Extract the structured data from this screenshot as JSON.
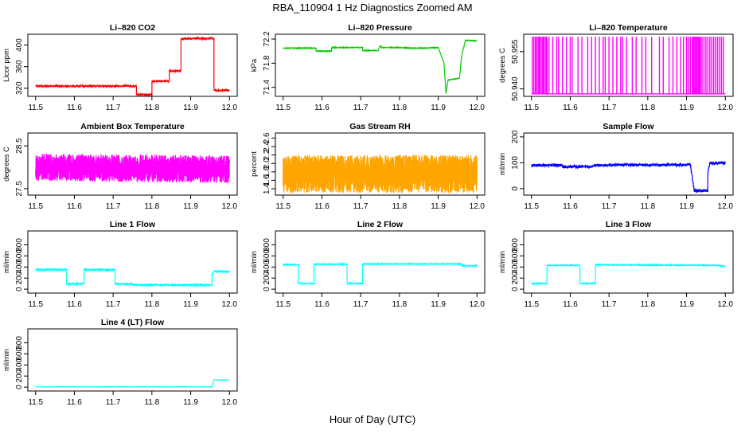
{
  "title": "RBA_110904  1 Hz Diagnostics Zoomed AM",
  "xlabel": "Hour of Day (UTC)",
  "chart_data": [
    {
      "id": "licor-co2",
      "type": "line",
      "title": "Li–820 CO2",
      "ylabel": "Licor ppm",
      "color": "#ff0000",
      "xlim": [
        11.48,
        12.02
      ],
      "xticks": [
        11.5,
        11.6,
        11.7,
        11.8,
        11.9,
        12.0
      ],
      "xtick_labels": [
        "11.5",
        "11.6",
        "11.7",
        "11.8",
        "11.9",
        "12.0"
      ],
      "ylim": [
        305,
        420
      ],
      "yticks": [
        320,
        360,
        400
      ],
      "ytick_labels": [
        "320",
        "360",
        "400"
      ],
      "noise": 1.5,
      "density": 4,
      "x": [
        11.5,
        11.76,
        11.76,
        11.8,
        11.8,
        11.845,
        11.845,
        11.875,
        11.875,
        11.905,
        11.905,
        11.96,
        11.96,
        12.0
      ],
      "values": [
        324,
        324,
        308,
        308,
        333,
        333,
        352,
        352,
        412,
        412,
        412,
        412,
        316,
        316
      ]
    },
    {
      "id": "licor-pressure",
      "type": "line",
      "title": "Li–820 Pressure",
      "ylabel": "kPa",
      "color": "#00cc00",
      "xlim": [
        11.48,
        12.02
      ],
      "xticks": [
        11.5,
        11.6,
        11.7,
        11.8,
        11.9,
        12.0
      ],
      "xtick_labels": [
        "11.5",
        "11.6",
        "11.7",
        "11.8",
        "11.9",
        "12.0"
      ],
      "ylim": [
        71.25,
        72.28
      ],
      "yticks": [
        71.4,
        71.8,
        72.2
      ],
      "ytick_labels": [
        "71.4",
        "71.8",
        "72.2"
      ],
      "noise": 0.006,
      "density": 4,
      "x": [
        11.5,
        11.585,
        11.585,
        11.625,
        11.625,
        11.705,
        11.705,
        11.745,
        11.75,
        11.755,
        11.8,
        11.83,
        11.86,
        11.9,
        11.915,
        11.92,
        11.925,
        11.925,
        11.955,
        11.96,
        11.97,
        12.0
      ],
      "values": [
        72.05,
        72.05,
        72.0,
        72.0,
        72.06,
        72.06,
        72.01,
        72.01,
        72.09,
        72.06,
        72.06,
        72.05,
        72.05,
        72.06,
        71.8,
        71.3,
        71.5,
        71.52,
        71.55,
        71.9,
        72.18,
        72.17
      ]
    },
    {
      "id": "licor-temperature",
      "type": "spikes",
      "title": "Li–820 Temperature",
      "ylabel": "degrees C",
      "color": "#ff00ff",
      "xlim": [
        11.48,
        12.02
      ],
      "xticks": [
        11.5,
        11.6,
        11.7,
        11.8,
        11.9,
        12.0
      ],
      "xtick_labels": [
        "11.5",
        "11.6",
        "11.7",
        "11.8",
        "11.9",
        "12.0"
      ],
      "ylim": [
        50.937,
        50.962
      ],
      "yticks": [
        50.94,
        50.955
      ],
      "ytick_labels": [
        "50.940",
        "50.955"
      ],
      "baseline": 50.938,
      "high": 50.961,
      "spike_x": [
        11.502,
        11.506,
        11.51,
        11.513,
        11.517,
        11.52,
        11.523,
        11.527,
        11.53,
        11.533,
        11.537,
        11.54,
        11.545,
        11.555,
        11.565,
        11.57,
        11.58,
        11.59,
        11.6,
        11.605,
        11.62,
        11.63,
        11.645,
        11.655,
        11.665,
        11.675,
        11.685,
        11.69,
        11.7,
        11.71,
        11.72,
        11.73,
        11.735,
        11.745,
        11.76,
        11.77,
        11.785,
        11.795,
        11.81,
        11.83,
        11.84,
        11.855,
        11.865,
        11.875,
        11.885,
        11.892,
        11.9,
        11.905,
        11.91,
        11.915,
        11.918,
        11.921,
        11.924,
        11.927,
        11.93,
        11.933,
        11.936,
        11.94,
        11.945,
        11.95,
        11.955,
        11.96,
        11.965,
        11.97,
        11.975,
        11.98,
        11.985,
        11.99,
        11.995
      ]
    },
    {
      "id": "ambient-box-temperature",
      "type": "line",
      "title": "Ambient Box Temperature",
      "ylabel": "degrees C",
      "color": "#ff00ff",
      "xlim": [
        11.48,
        12.02
      ],
      "xticks": [
        11.5,
        11.6,
        11.7,
        11.8,
        11.9,
        12.0
      ],
      "xtick_labels": [
        "11.5",
        "11.6",
        "11.7",
        "11.8",
        "11.9",
        "12.0"
      ],
      "ylim": [
        27.35,
        28.8
      ],
      "yticks": [
        27.5,
        28.5
      ],
      "ytick_labels": [
        "27.5",
        "28.5"
      ],
      "noise": 0.32,
      "density": 10,
      "x": [
        11.5,
        12.0
      ],
      "values": [
        28.0,
        27.95
      ]
    },
    {
      "id": "gas-stream-rh",
      "type": "line",
      "title": "Gas Stream RH",
      "ylabel": "percent",
      "color": "#ffa500",
      "xlim": [
        11.48,
        12.02
      ],
      "xticks": [
        11.5,
        11.6,
        11.7,
        11.8,
        11.9,
        12.0
      ],
      "xtick_labels": [
        "11.5",
        "11.6",
        "11.7",
        "11.8",
        "11.9",
        "12.0"
      ],
      "ylim": [
        1.25,
        2.72
      ],
      "yticks": [
        1.4,
        1.6,
        1.8,
        2.0,
        2.2,
        2.4,
        2.6
      ],
      "ytick_labels": [
        "1.4",
        "1.6",
        "1.8",
        "2.0",
        "2.2",
        "2.4",
        "2.6"
      ],
      "noise": 0.45,
      "density": 10,
      "x": [
        11.5,
        12.0
      ],
      "values": [
        1.75,
        1.75
      ]
    },
    {
      "id": "sample-flow",
      "type": "line",
      "title": "Sample Flow",
      "ylabel": "ml/min",
      "color": "#0000ff",
      "xlim": [
        11.48,
        12.02
      ],
      "xticks": [
        11.5,
        11.6,
        11.7,
        11.8,
        11.9,
        12.0
      ],
      "xtick_labels": [
        "11.5",
        "11.6",
        "11.7",
        "11.8",
        "11.9",
        "12.0"
      ],
      "ylim": [
        -25,
        215
      ],
      "yticks": [
        0,
        100,
        200
      ],
      "ytick_labels": [
        "0",
        "100",
        "200"
      ],
      "noise": 5,
      "density": 5,
      "x": [
        11.5,
        11.58,
        11.58,
        11.66,
        11.66,
        11.7,
        11.7,
        11.91,
        11.92,
        11.955,
        11.955,
        11.96,
        12.0
      ],
      "values": [
        90,
        90,
        85,
        85,
        90,
        90,
        92,
        92,
        -8,
        -8,
        60,
        98,
        100
      ]
    },
    {
      "id": "line-1-flow",
      "type": "line",
      "title": "Line 1 Flow",
      "ylabel": "ml/min",
      "color": "#00ffff",
      "xlim": [
        11.48,
        12.02
      ],
      "xticks": [
        11.5,
        11.6,
        11.7,
        11.8,
        11.9,
        12.0
      ],
      "xtick_labels": [
        "11.5",
        "11.6",
        "11.7",
        "11.8",
        "11.9",
        "12.0"
      ],
      "ylim": [
        -70,
        1050
      ],
      "yticks": [
        0,
        200,
        400,
        600,
        800
      ],
      "ytick_labels": [
        "0",
        "200",
        "400",
        "600",
        "800"
      ],
      "noise": 14,
      "density": 4,
      "x": [
        11.5,
        11.58,
        11.58,
        11.625,
        11.625,
        11.705,
        11.705,
        11.75,
        11.75,
        11.955,
        11.955,
        11.96,
        12.0
      ],
      "values": [
        350,
        350,
        95,
        95,
        350,
        350,
        95,
        95,
        75,
        75,
        250,
        320,
        320
      ]
    },
    {
      "id": "line-2-flow",
      "type": "line",
      "title": "Line 2 Flow",
      "ylabel": "ml/min",
      "color": "#00ffff",
      "xlim": [
        11.48,
        12.02
      ],
      "xticks": [
        11.5,
        11.6,
        11.7,
        11.8,
        11.9,
        12.0
      ],
      "xtick_labels": [
        "11.5",
        "11.6",
        "11.7",
        "11.8",
        "11.9",
        "12.0"
      ],
      "ylim": [
        -70,
        1050
      ],
      "yticks": [
        0,
        200,
        400,
        600,
        800
      ],
      "ytick_labels": [
        "0",
        "200",
        "400",
        "600",
        "800"
      ],
      "noise": 8,
      "density": 4,
      "x": [
        11.5,
        11.54,
        11.54,
        11.58,
        11.58,
        11.665,
        11.665,
        11.705,
        11.705,
        11.96,
        11.96,
        12.0
      ],
      "values": [
        440,
        440,
        100,
        100,
        450,
        450,
        100,
        100,
        455,
        455,
        420,
        420
      ]
    },
    {
      "id": "line-3-flow",
      "type": "line",
      "title": "Line 3 Flow",
      "ylabel": "ml/min",
      "color": "#00ffff",
      "xlim": [
        11.48,
        12.02
      ],
      "xticks": [
        11.5,
        11.6,
        11.7,
        11.8,
        11.9,
        12.0
      ],
      "xtick_labels": [
        "11.5",
        "11.6",
        "11.7",
        "11.8",
        "11.9",
        "12.0"
      ],
      "ylim": [
        -70,
        1050
      ],
      "yticks": [
        0,
        200,
        400,
        600,
        800
      ],
      "ytick_labels": [
        "0",
        "200",
        "400",
        "600",
        "800"
      ],
      "noise": 8,
      "density": 4,
      "x": [
        11.5,
        11.54,
        11.54,
        11.625,
        11.625,
        11.665,
        11.665,
        11.98,
        12.0
      ],
      "values": [
        100,
        100,
        430,
        430,
        100,
        100,
        440,
        430,
        410
      ]
    },
    {
      "id": "line-4-lt-flow",
      "type": "line",
      "title": "Line 4 (LT) Flow",
      "ylabel": "ml/min",
      "color": "#00ffff",
      "xlim": [
        11.48,
        12.02
      ],
      "xticks": [
        11.5,
        11.6,
        11.7,
        11.8,
        11.9,
        12.0
      ],
      "xtick_labels": [
        "11.5",
        "11.6",
        "11.7",
        "11.8",
        "11.9",
        "12.0"
      ],
      "ylim": [
        -70,
        1050
      ],
      "yticks": [
        0,
        200,
        400,
        600,
        800
      ],
      "ytick_labels": [
        "0",
        "200",
        "400",
        "600",
        "800"
      ],
      "noise": 2,
      "density": 4,
      "x": [
        11.5,
        11.955,
        11.96,
        12.0
      ],
      "values": [
        5,
        5,
        130,
        130
      ]
    }
  ]
}
